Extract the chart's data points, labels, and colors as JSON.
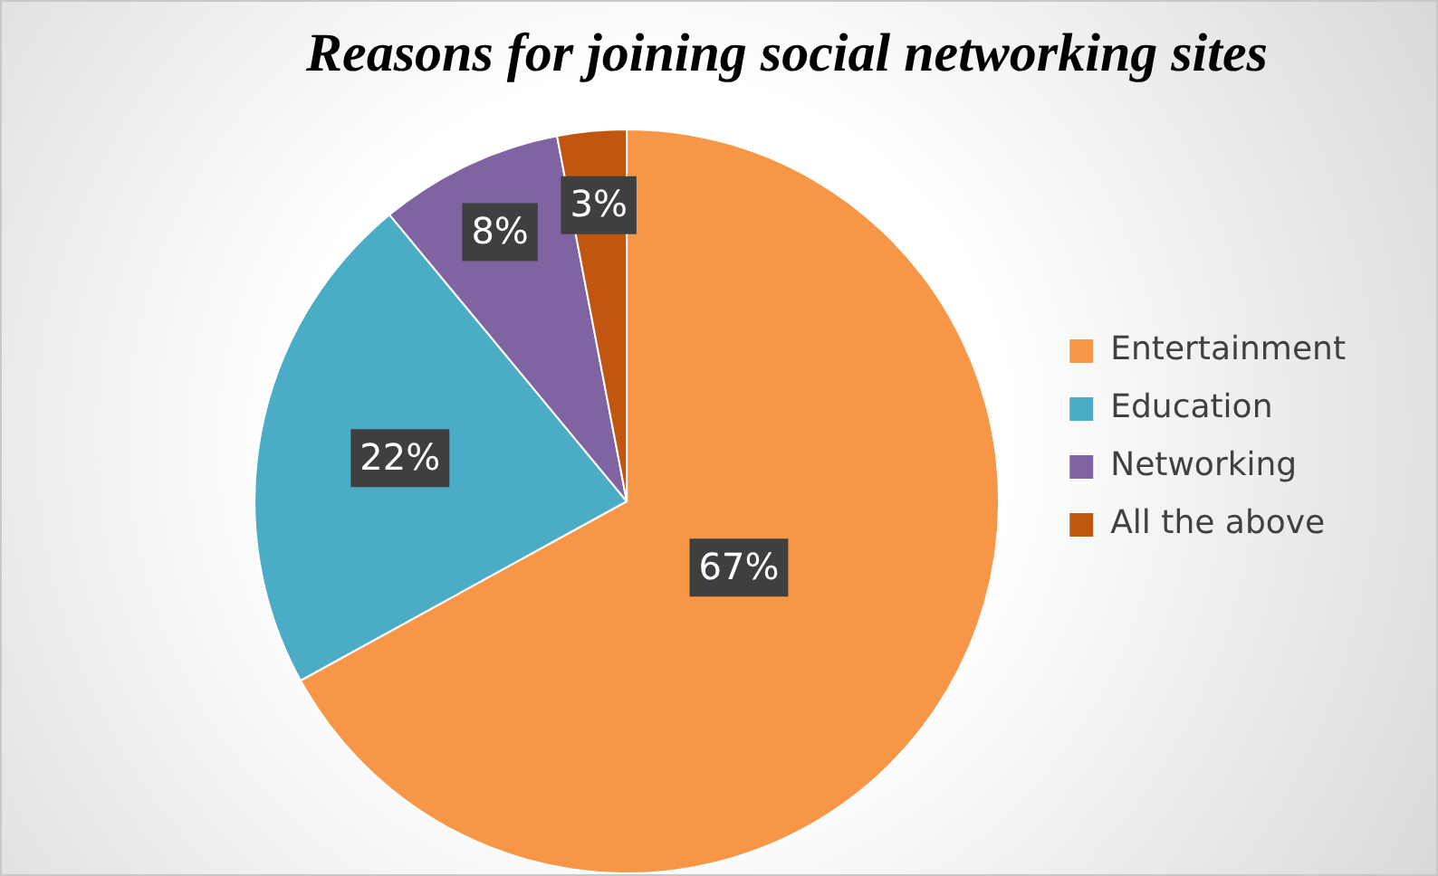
{
  "chart_data": {
    "type": "pie",
    "title": "Reasons for joining social networking sites",
    "categories": [
      "Entertainment",
      "Education",
      "Networking",
      "All the above"
    ],
    "values": [
      67,
      22,
      8,
      3
    ],
    "colors": [
      "#f79646",
      "#4bacc6",
      "#8064a2",
      "#c0560f"
    ],
    "value_labels": [
      "67%",
      "22%",
      "8%",
      "3%"
    ],
    "legend": "right"
  }
}
